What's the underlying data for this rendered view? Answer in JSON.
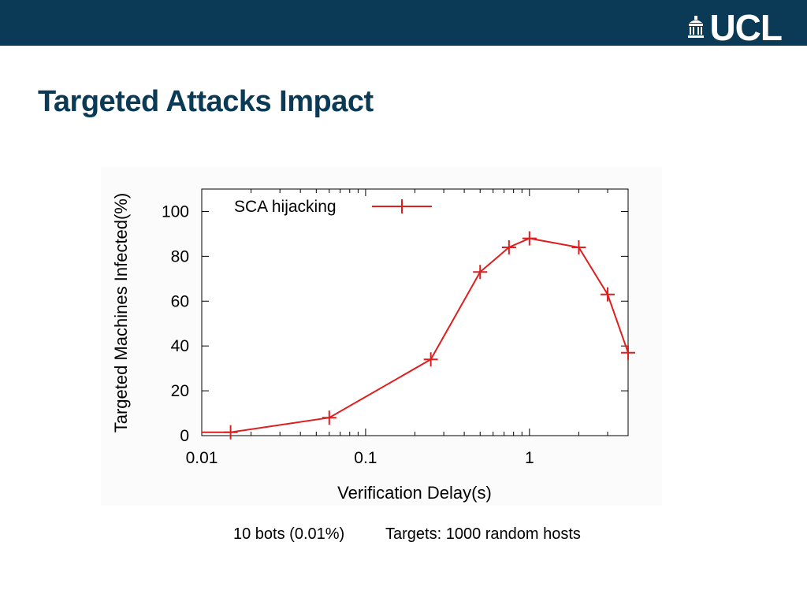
{
  "header": {
    "logo_text": "UCL",
    "logo_icon": "portico-icon",
    "bar_color": "#0b3a57"
  },
  "slide": {
    "title": "Targeted Attacks Impact"
  },
  "caption": {
    "left": "10 bots (0.01%)",
    "right": "Targets: 1000 random hosts"
  },
  "chart_data": {
    "type": "line",
    "title": "",
    "xlabel": "Verification Delay(s)",
    "ylabel": "Targeted Machines Infected(%)",
    "x_scale": "log",
    "xlim": [
      0.01,
      4
    ],
    "ylim": [
      0,
      110
    ],
    "x_ticks": [
      {
        "value": 0.01,
        "label": "0.01"
      },
      {
        "value": 0.1,
        "label": "0.1"
      },
      {
        "value": 1,
        "label": "1"
      }
    ],
    "y_ticks": [
      {
        "value": 0,
        "label": "0"
      },
      {
        "value": 20,
        "label": "20"
      },
      {
        "value": 40,
        "label": "40"
      },
      {
        "value": 60,
        "label": "60"
      },
      {
        "value": 80,
        "label": "80"
      },
      {
        "value": 100,
        "label": "100"
      }
    ],
    "grid": false,
    "legend_position": "top-left",
    "series": [
      {
        "name": "SCA hijacking",
        "color": "#dd1f1f",
        "marker": "plus",
        "line_start_x": 0.01,
        "line_start_y": 1.5,
        "points": [
          {
            "x": 0.015,
            "y": 1.5
          },
          {
            "x": 0.06,
            "y": 8
          },
          {
            "x": 0.25,
            "y": 34
          },
          {
            "x": 0.5,
            "y": 73
          },
          {
            "x": 0.75,
            "y": 84
          },
          {
            "x": 1.0,
            "y": 88
          },
          {
            "x": 2.0,
            "y": 84
          },
          {
            "x": 3.0,
            "y": 63
          },
          {
            "x": 4.0,
            "y": 37
          }
        ]
      }
    ]
  }
}
